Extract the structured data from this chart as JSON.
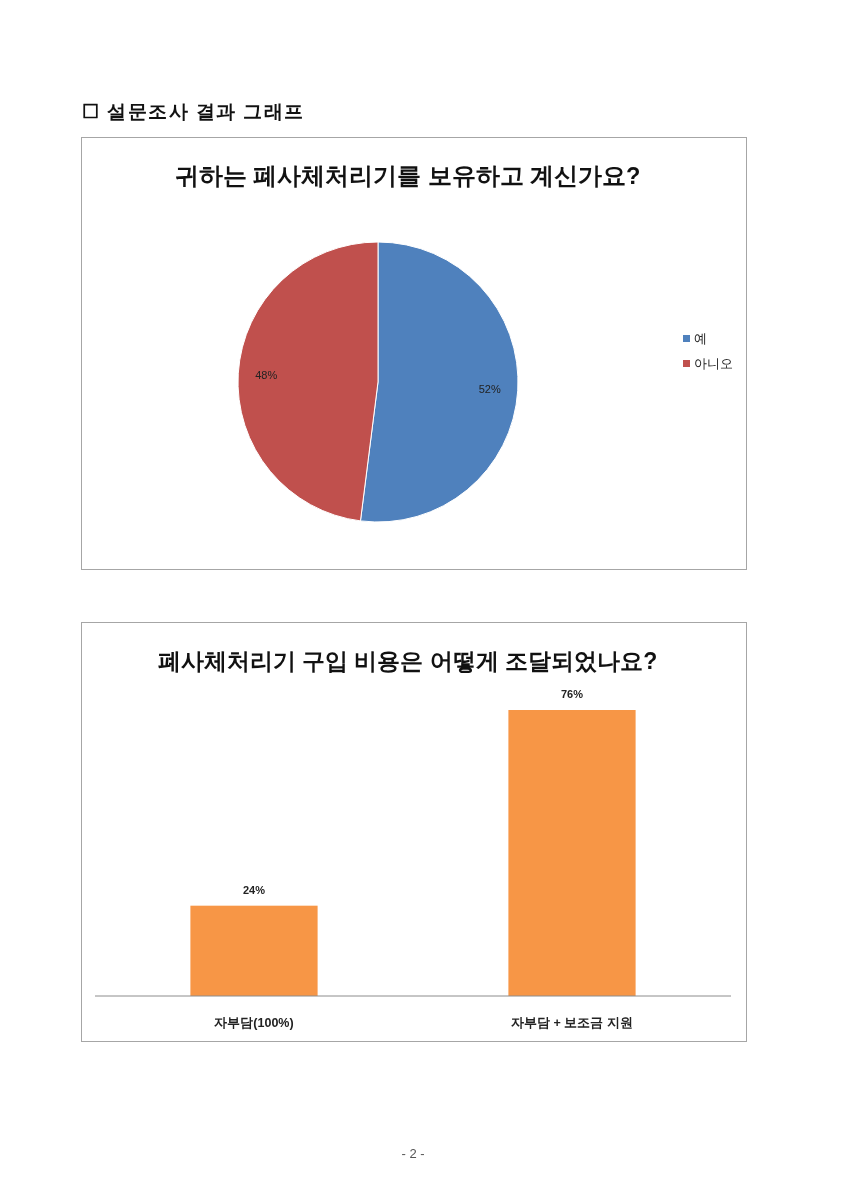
{
  "chart_data": [
    {
      "type": "pie",
      "title": "귀하는 폐사체처리기를 보유하고 계신가요?",
      "categories": [
        "예",
        "아니오"
      ],
      "values": [
        52,
        48
      ],
      "colors": [
        "#4f81bd",
        "#c0504d"
      ],
      "value_labels": [
        "52%",
        "48%"
      ],
      "legend": "right",
      "annotations": [
        "☐ 설문조사 결과 그래프"
      ]
    },
    {
      "type": "bar",
      "title": "폐사체처리기 구입 비용은 어떻게 조달되었나요?",
      "categories": [
        "자부담(100%)",
        "자부담 + 보조금 지원"
      ],
      "values": [
        24,
        76
      ],
      "color": "#f79646",
      "value_labels": [
        "24%",
        "76%"
      ],
      "annotations": [
        "- 2 -"
      ]
    }
  ]
}
